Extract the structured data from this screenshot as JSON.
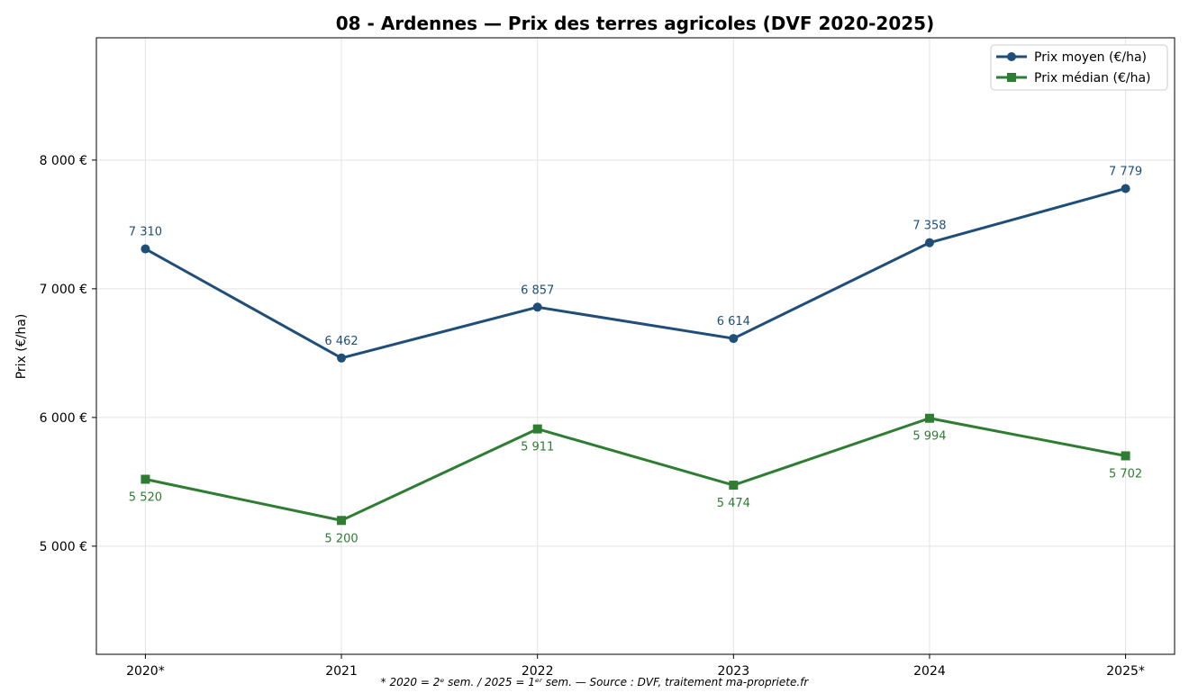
{
  "chart_data": {
    "type": "line",
    "title": "08 - Ardennes — Prix des terres agricoles (DVF 2020-2025)",
    "xlabel": "",
    "ylabel": "Prix (€/ha)",
    "categories": [
      "2020*",
      "2021",
      "2022",
      "2023",
      "2024",
      "2025*"
    ],
    "ylim": [
      4160,
      8950
    ],
    "yticks": [
      5000,
      6000,
      7000,
      8000
    ],
    "ytick_labels": [
      "5 000 €",
      "6 000 €",
      "7 000 €",
      "8 000 €"
    ],
    "grid": true,
    "legend_position": "top-right",
    "series": [
      {
        "name": "Prix moyen (€/ha)",
        "color": "#1f4e79",
        "marker": "circle",
        "values": [
          7310,
          6462,
          6857,
          6614,
          7358,
          7779
        ],
        "labels": [
          "7 310",
          "6 462",
          "6 857",
          "6 614",
          "7 358",
          "7 779"
        ],
        "label_position": "above"
      },
      {
        "name": "Prix médian (€/ha)",
        "color": "#2e7d32",
        "marker": "square",
        "values": [
          5520,
          5200,
          5911,
          5474,
          5994,
          5702
        ],
        "labels": [
          "5 520",
          "5 200",
          "5 911",
          "5 474",
          "5 994",
          "5 702"
        ],
        "label_position": "below"
      }
    ],
    "footnote": "* 2020 = 2ᵉ sem. / 2025 = 1ᵉʳ sem. — Source : DVF, traitement ma-propriete.fr"
  }
}
